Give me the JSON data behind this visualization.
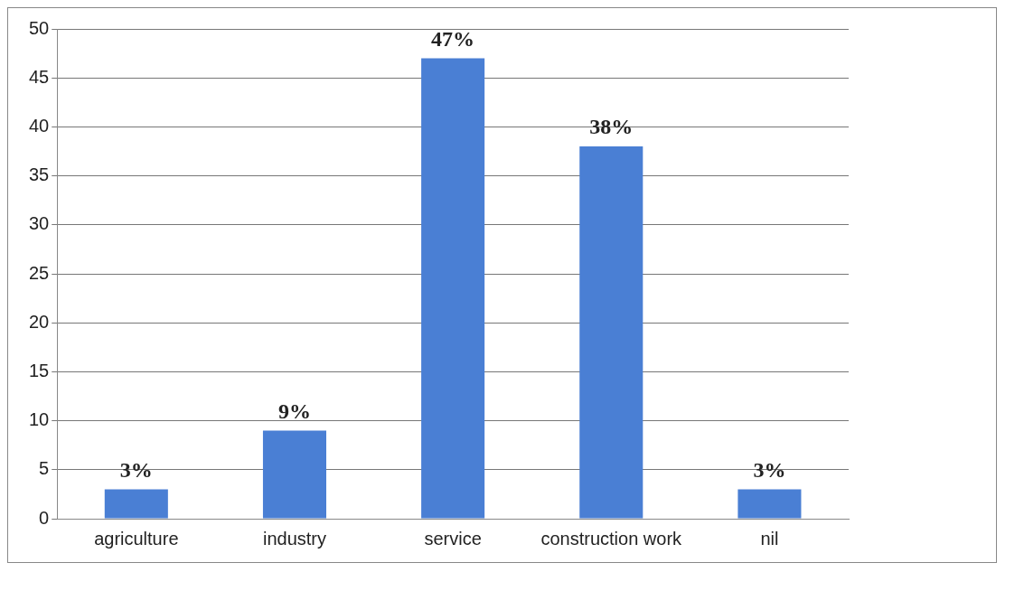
{
  "chart_data": {
    "type": "bar",
    "categories": [
      "agriculture",
      "industry",
      "service",
      "construction work",
      "nil"
    ],
    "values": [
      3,
      9,
      47,
      38,
      3
    ],
    "value_labels": [
      "3%",
      "9%",
      "47%",
      "38%",
      "3%"
    ],
    "color": "#4a7fd4",
    "ylim": [
      0,
      50
    ],
    "yticks": [
      0,
      5,
      10,
      15,
      20,
      25,
      30,
      35,
      40,
      45,
      50
    ],
    "grid": "y",
    "legend": false
  }
}
